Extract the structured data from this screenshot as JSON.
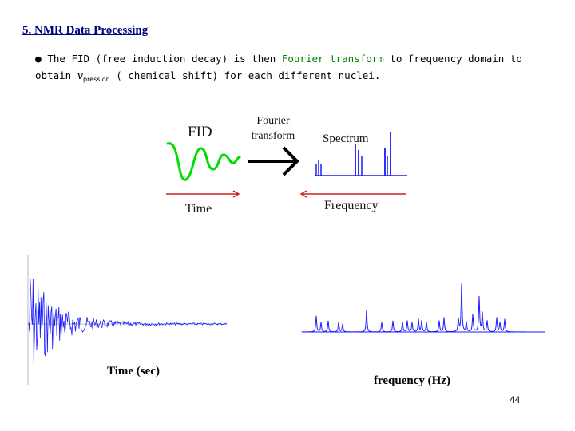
{
  "heading": "5. NMR Data Processing",
  "bullet": {
    "p1": "The FID (free induction decay) is then ",
    "highlight": "Fourier transform",
    "p2": " to frequency domain to obtain ",
    "nu": "v",
    "nu_sub": "pression",
    "p3": " ( chemical shift) for each different nuclei.",
    "highlight_color": "#008000"
  },
  "diagram": {
    "fid_label": "FID",
    "fourier_line1": "Fourier",
    "fourier_line2": "transform",
    "spectrum_label": "Spectrum",
    "time_label": "Time",
    "frequency_label": "Frequency",
    "fid_color": "#00dd00",
    "arrow_color": "#cc2222",
    "spectrum_color": "#1a1aff"
  },
  "plots": {
    "fid_color": "#1a1aff",
    "spectrum_color": "#1a1aff"
  },
  "labels": {
    "time_sec": "Time (sec)",
    "frequency_hz": "frequency (Hz)"
  },
  "page_number": "44"
}
